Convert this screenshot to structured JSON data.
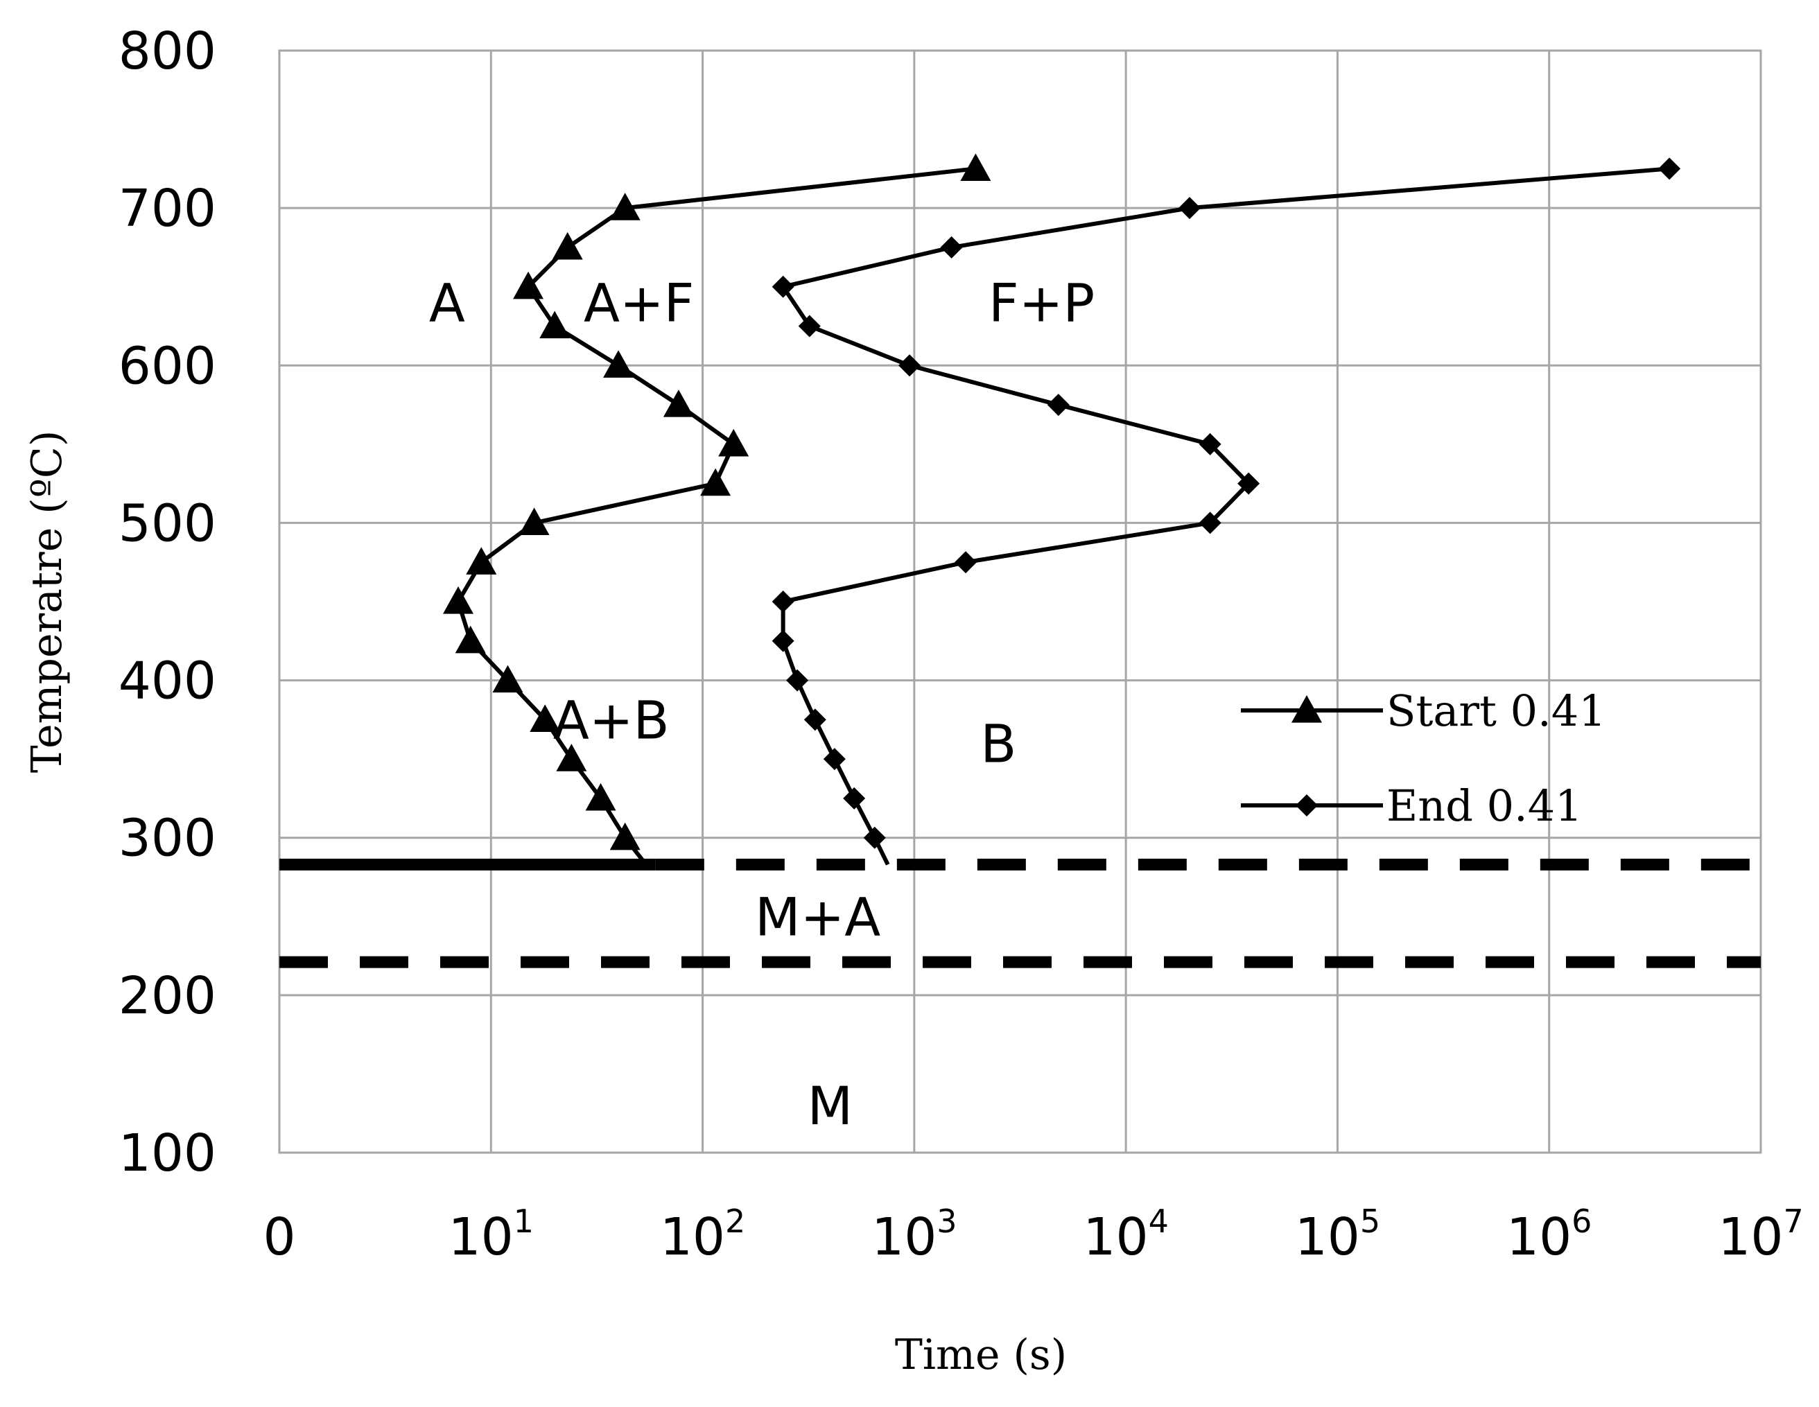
{
  "chart_data": {
    "type": "line",
    "xlabel": "Time  (s)",
    "ylabel": "Temperatre (ºC)",
    "x_scale": "log",
    "x_ticks": [
      {
        "base": "0",
        "exp": ""
      },
      {
        "base": "10",
        "exp": "1"
      },
      {
        "base": "10",
        "exp": "2"
      },
      {
        "base": "10",
        "exp": "3"
      },
      {
        "base": "10",
        "exp": "4"
      },
      {
        "base": "10",
        "exp": "5"
      },
      {
        "base": "10",
        "exp": "6"
      },
      {
        "base": "10",
        "exp": "7"
      }
    ],
    "y_ticks": [
      "800",
      "700",
      "600",
      "500",
      "400",
      "300",
      "200",
      "100"
    ],
    "xlim": [
      1,
      10000000
    ],
    "ylim": [
      100,
      800
    ],
    "grid": true,
    "legend_position": "right-middle",
    "series": [
      {
        "name": "Start 0.41",
        "marker": "triangle",
        "points": [
          [
            54,
            283
          ],
          [
            43,
            300
          ],
          [
            33,
            325
          ],
          [
            24,
            350
          ],
          [
            18,
            375
          ],
          [
            12,
            400
          ],
          [
            8,
            425
          ],
          [
            7,
            450
          ],
          [
            9,
            475
          ],
          [
            16,
            500
          ],
          [
            115,
            525
          ],
          [
            140,
            550
          ],
          [
            77,
            575
          ],
          [
            40,
            600
          ],
          [
            20,
            625
          ],
          [
            15,
            650
          ],
          [
            23,
            675
          ],
          [
            43,
            700
          ],
          [
            1950,
            725
          ]
        ]
      },
      {
        "name": "End 0.41",
        "marker": "diamond",
        "points": [
          [
            750,
            283
          ],
          [
            650,
            300
          ],
          [
            520,
            325
          ],
          [
            420,
            350
          ],
          [
            340,
            375
          ],
          [
            280,
            400
          ],
          [
            240,
            425
          ],
          [
            240,
            450
          ],
          [
            1750,
            475
          ],
          [
            25000,
            500
          ],
          [
            38000,
            525
          ],
          [
            25000,
            550
          ],
          [
            4800,
            575
          ],
          [
            950,
            600
          ],
          [
            320,
            625
          ],
          [
            240,
            650
          ],
          [
            1500,
            675
          ],
          [
            20000,
            700
          ],
          [
            3700000,
            725
          ]
        ]
      }
    ],
    "reference_lines": [
      {
        "y": 283,
        "solid_until_x": 60
      },
      {
        "y": 221
      }
    ],
    "region_labels": [
      {
        "text": "A",
        "x": 6.2,
        "y": 640
      },
      {
        "text": "A+F",
        "x": 50,
        "y": 640
      },
      {
        "text": "F+P",
        "x": 4000,
        "y": 640
      },
      {
        "text": "A+B",
        "x": 37,
        "y": 375
      },
      {
        "text": "B",
        "x": 2500,
        "y": 360
      },
      {
        "text": "M+A",
        "x": 350,
        "y": 250
      },
      {
        "text": "M",
        "x": 400,
        "y": 130
      }
    ]
  }
}
